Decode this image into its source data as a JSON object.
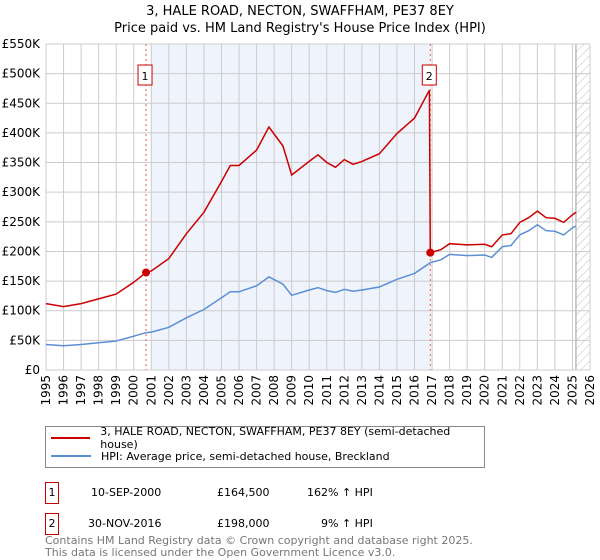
{
  "title": "3, HALE ROAD, NECTON, SWAFFHAM, PE37 8EY",
  "subtitle": "Price paid vs. HM Land Registry's House Price Index (HPI)",
  "chart_data": {
    "type": "line",
    "xlim": [
      1995,
      2026
    ],
    "ylim": [
      0,
      550000
    ],
    "y_ticks": [
      {
        "v": 0,
        "label": "£0"
      },
      {
        "v": 50000,
        "label": "£50K"
      },
      {
        "v": 100000,
        "label": "£100K"
      },
      {
        "v": 150000,
        "label": "£150K"
      },
      {
        "v": 200000,
        "label": "£200K"
      },
      {
        "v": 250000,
        "label": "£250K"
      },
      {
        "v": 300000,
        "label": "£300K"
      },
      {
        "v": 350000,
        "label": "£350K"
      },
      {
        "v": 400000,
        "label": "£400K"
      },
      {
        "v": 450000,
        "label": "£450K"
      },
      {
        "v": 500000,
        "label": "£500K"
      },
      {
        "v": 550000,
        "label": "£550K"
      }
    ],
    "x_ticks": [
      1995,
      1996,
      1997,
      1998,
      1999,
      2000,
      2001,
      2002,
      2003,
      2004,
      2005,
      2006,
      2007,
      2008,
      2009,
      2010,
      2011,
      2012,
      2013,
      2014,
      2015,
      2016,
      2017,
      2018,
      2019,
      2020,
      2021,
      2022,
      2023,
      2024,
      2025,
      2026
    ],
    "grid": true,
    "shaded_range": [
      2001.0,
      2016.9
    ],
    "forecast_hatch_from": 2025.2,
    "series": [
      {
        "name": "3, HALE ROAD, NECTON, SWAFFHAM, PE37 8EY (semi-detached house)",
        "color": "#cc0000",
        "x": [
          1995,
          1996,
          1997,
          1998,
          1999,
          2000,
          2000.7,
          2001,
          2002,
          2003,
          2004,
          2005,
          2005.5,
          2006,
          2007,
          2007.7,
          2008.5,
          2009,
          2010,
          2010.5,
          2011,
          2011.5,
          2012,
          2012.5,
          2013,
          2014,
          2015,
          2016,
          2016.85,
          2016.9,
          2017.5,
          2018,
          2019,
          2020,
          2020.4,
          2021,
          2021.5,
          2022,
          2022.5,
          2023,
          2023.5,
          2024,
          2024.5,
          2025,
          2025.2
        ],
        "y": [
          112000,
          107000,
          112000,
          120000,
          128000,
          148000,
          164500,
          167000,
          188000,
          230000,
          266000,
          318000,
          345000,
          345000,
          371000,
          410000,
          378000,
          329000,
          352000,
          363000,
          350000,
          342000,
          355000,
          347000,
          352000,
          365000,
          399000,
          425000,
          472000,
          198000,
          203000,
          213000,
          211000,
          212000,
          208000,
          228000,
          230000,
          249000,
          257000,
          268000,
          257000,
          256000,
          249000,
          262000,
          266000
        ]
      },
      {
        "name": "HPI: Average price, semi-detached house, Breckland",
        "color": "#5b8fd4",
        "x": [
          1995,
          1996,
          1997,
          1998,
          1999,
          2000,
          2000.7,
          2001,
          2002,
          2003,
          2004,
          2005,
          2005.5,
          2006,
          2007,
          2007.7,
          2008.5,
          2009,
          2010,
          2010.5,
          2011,
          2011.5,
          2012,
          2012.5,
          2013,
          2014,
          2015,
          2016,
          2016.9,
          2017.5,
          2018,
          2019,
          2020,
          2020.4,
          2021,
          2021.5,
          2022,
          2022.5,
          2023,
          2023.5,
          2024,
          2024.5,
          2025,
          2025.2
        ],
        "y": [
          43000,
          41000,
          43000,
          46000,
          49000,
          57000,
          63000,
          64000,
          72000,
          88000,
          102000,
          122000,
          132000,
          132000,
          142000,
          157000,
          145000,
          126000,
          135000,
          139000,
          134000,
          131000,
          136000,
          133000,
          135000,
          140000,
          153000,
          163000,
          181000,
          186000,
          195000,
          193000,
          194000,
          190000,
          208000,
          210000,
          228000,
          235000,
          245000,
          235000,
          234000,
          228000,
          240000,
          243000
        ]
      }
    ],
    "sales": [
      {
        "label": "1",
        "x": 2000.7,
        "y": 164500
      },
      {
        "label": "2",
        "x": 2016.9,
        "y": 198000
      }
    ]
  },
  "legend": {
    "property": "3, HALE ROAD, NECTON, SWAFFHAM, PE37 8EY (semi-detached house)",
    "hpi": "HPI: Average price, semi-detached house, Breckland"
  },
  "transactions": [
    {
      "num": "1",
      "date": "10-SEP-2000",
      "price": "£164,500",
      "hpi": "162% ↑ HPI"
    },
    {
      "num": "2",
      "date": "30-NOV-2016",
      "price": "£198,000",
      "hpi": "9% ↑ HPI"
    }
  ],
  "footer": [
    "Contains HM Land Registry data © Crown copyright and database right 2025.",
    "This data is licensed under the Open Government Licence v3.0."
  ]
}
